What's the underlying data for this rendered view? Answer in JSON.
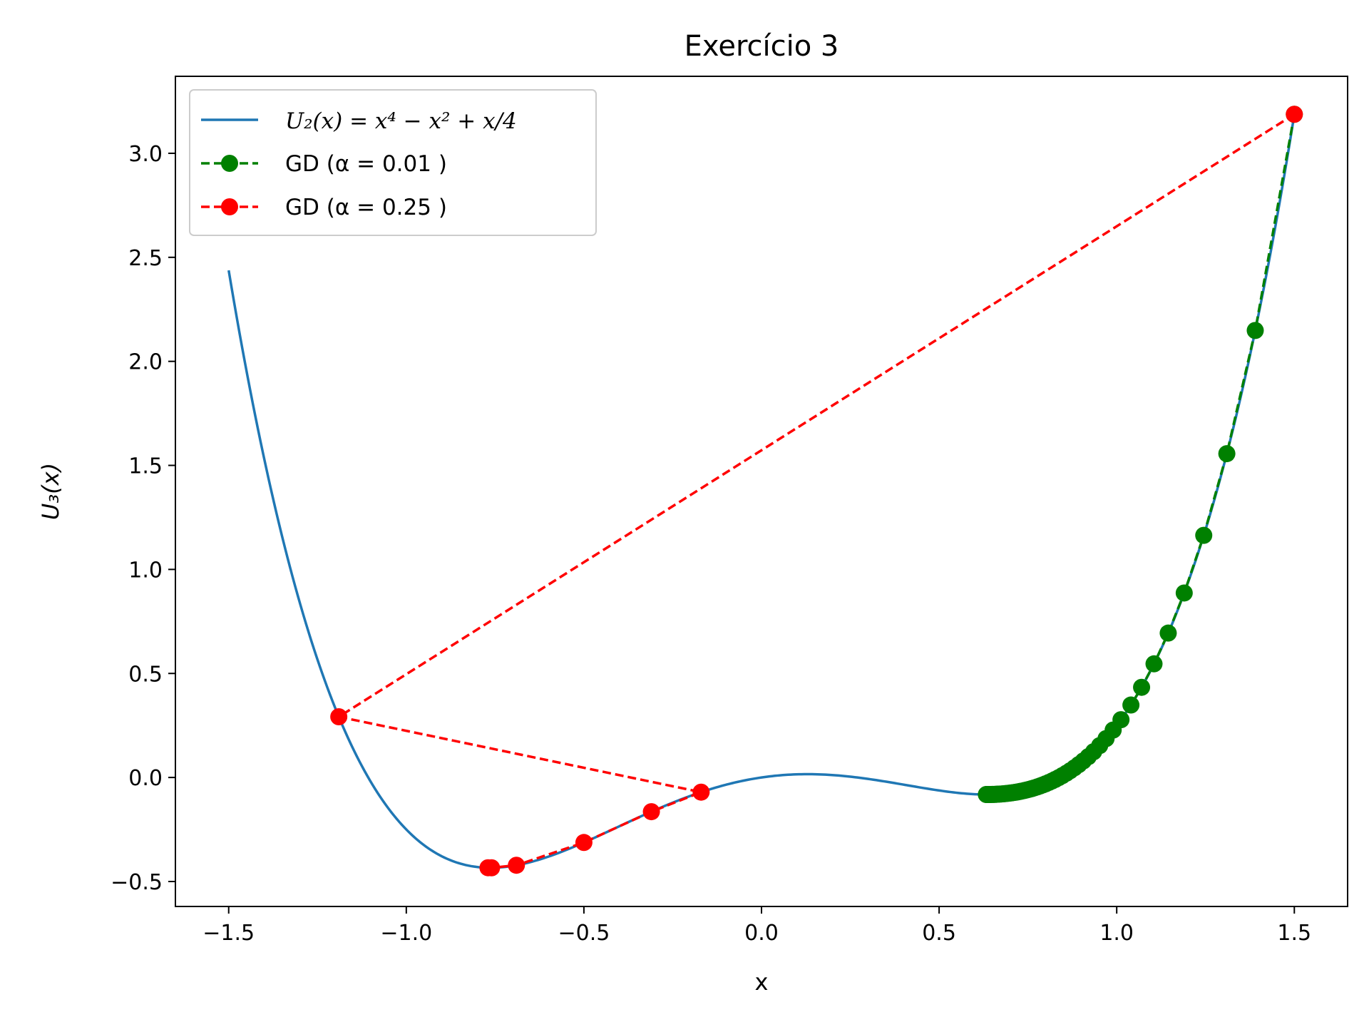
{
  "chart_data": {
    "type": "line",
    "title": "Exercício 3",
    "xlabel": "x",
    "ylabel": "U₃(x)",
    "xlim": [
      -1.65,
      1.65
    ],
    "ylim": [
      -0.62,
      3.37
    ],
    "xticks": [
      -1.5,
      -1.0,
      -0.5,
      0.0,
      0.5,
      1.0,
      1.5
    ],
    "xtick_labels": [
      "−1.5",
      "−1.0",
      "−0.5",
      "0.0",
      "0.5",
      "1.0",
      "1.5"
    ],
    "yticks": [
      -0.5,
      0.0,
      0.5,
      1.0,
      1.5,
      2.0,
      2.5,
      3.0
    ],
    "ytick_labels": [
      "−0.5",
      "0.0",
      "0.5",
      "1.0",
      "1.5",
      "2.0",
      "2.5",
      "3.0"
    ],
    "grid": false,
    "legend_position": "top-left",
    "series": [
      {
        "name": "U₂(x) = x⁴ − x² + x/4",
        "kind": "function",
        "color": "#1f77b4",
        "x_range": [
          -1.5,
          1.5
        ]
      },
      {
        "name": "GD (α = 0.01 )",
        "kind": "gd-path",
        "color": "#008000",
        "x": [
          1.5,
          1.39,
          1.31,
          1.245,
          1.19,
          1.145,
          1.105,
          1.07,
          1.04,
          1.012,
          0.99,
          0.97,
          0.952,
          0.935,
          0.92,
          0.906,
          0.893,
          0.881,
          0.869,
          0.858,
          0.847,
          0.837,
          0.827,
          0.818,
          0.809,
          0.8,
          0.792,
          0.784,
          0.776,
          0.768,
          0.761,
          0.754,
          0.747,
          0.74,
          0.733,
          0.727,
          0.721,
          0.715,
          0.709,
          0.703,
          0.697,
          0.691,
          0.686,
          0.681,
          0.676,
          0.671,
          0.667,
          0.663,
          0.659,
          0.655,
          0.652,
          0.649,
          0.646,
          0.643,
          0.641,
          0.639,
          0.637,
          0.635,
          0.634,
          0.633
        ]
      },
      {
        "name": "GD (α = 0.25 )",
        "kind": "gd-path",
        "color": "#ff0000",
        "x": [
          1.5,
          -1.19,
          -0.17,
          -0.31,
          -0.5,
          -0.69,
          -0.76,
          -0.77
        ]
      }
    ]
  }
}
